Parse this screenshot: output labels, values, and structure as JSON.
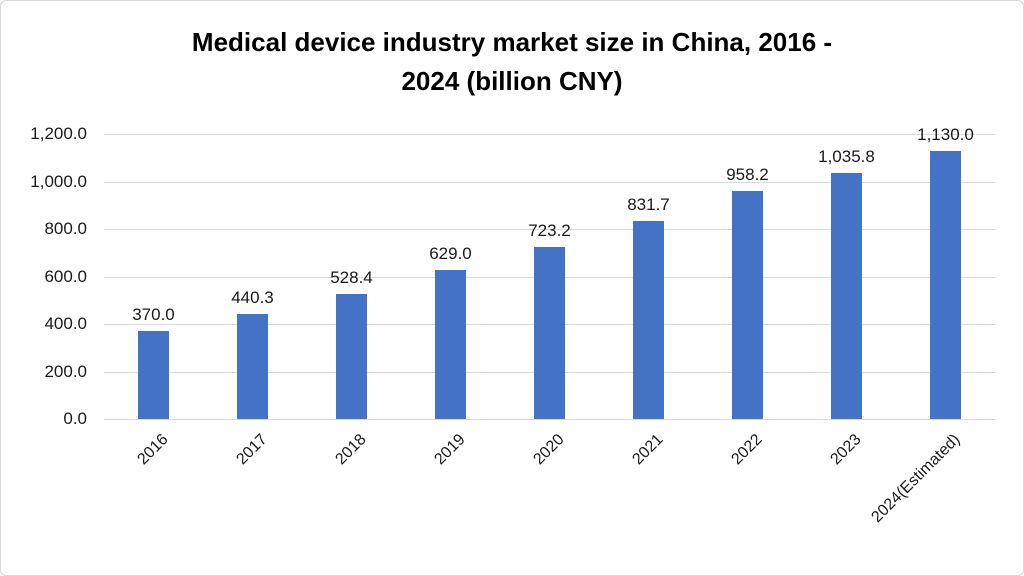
{
  "chart_data": {
    "type": "bar",
    "title": "Medical device industry market size in China, 2016 - 2024 (billion CNY)",
    "title_lines": [
      "Medical device industry market size in China, 2016 -",
      "2024 (billion CNY)"
    ],
    "categories": [
      "2016",
      "2017",
      "2018",
      "2019",
      "2020",
      "2021",
      "2022",
      "2023",
      "2024(Estimated)"
    ],
    "values": [
      370.0,
      440.3,
      528.4,
      629.0,
      723.2,
      831.7,
      958.2,
      1035.8,
      1130.0
    ],
    "data_labels": [
      "370.0",
      "440.3",
      "528.4",
      "629.0",
      "723.2",
      "831.7",
      "958.2",
      "1,035.8",
      "1,130.0"
    ],
    "xlabel": "",
    "ylabel": "",
    "ylim": [
      0,
      1200
    ],
    "ytick_interval": 200,
    "yticks": [
      "0.0",
      "200.0",
      "400.0",
      "600.0",
      "800.0",
      "1,000.0",
      "1,200.0"
    ],
    "grid": true,
    "legend": "none",
    "bar_color": "#4472C4",
    "gridline_color": "#d9d9d9",
    "background_color": "#ffffff",
    "text_color": "#1a1a1a",
    "title_color": "#000000"
  }
}
